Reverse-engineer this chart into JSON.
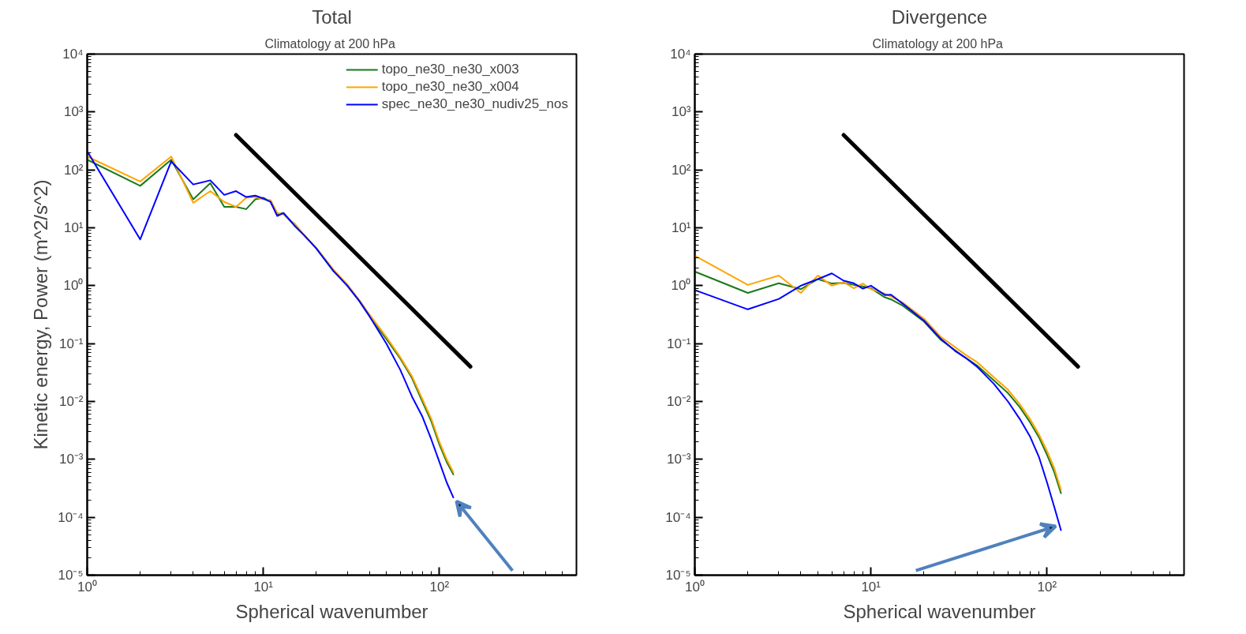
{
  "chart_data": [
    {
      "type": "line",
      "title": "Total",
      "subtitle": "Climatology  at 200 hPa",
      "xlabel": "Spherical wavenumber",
      "ylabel": "Kinetic energy, Power (m^2/s^2)",
      "log": "xy",
      "grid": false,
      "legend": "top right",
      "xlim": [
        1,
        600
      ],
      "ylim": [
        1e-05,
        10000
      ],
      "xticks": [
        {
          "value": 1,
          "label": "10⁰"
        },
        {
          "value": 10,
          "label": "10¹"
        },
        {
          "value": 100,
          "label": "10²"
        }
      ],
      "yticks": [
        {
          "value": 1e-05,
          "label": "10⁻⁵"
        },
        {
          "value": 0.0001,
          "label": "10⁻⁴"
        },
        {
          "value": 0.001,
          "label": "10⁻³"
        },
        {
          "value": 0.01,
          "label": "10⁻²"
        },
        {
          "value": 0.1,
          "label": "10⁻¹"
        },
        {
          "value": 1,
          "label": "10⁰"
        },
        {
          "value": 10,
          "label": "10¹"
        },
        {
          "value": 100,
          "label": "10²"
        },
        {
          "value": 1000,
          "label": "10³"
        },
        {
          "value": 10000,
          "label": "10⁴"
        }
      ],
      "series": [
        {
          "name": "topo_ne30_ne30_x003",
          "color": "#1a7a1a",
          "x": [
            1,
            2,
            3,
            4,
            5,
            6,
            7,
            8,
            9,
            10,
            11,
            12,
            13,
            14,
            15,
            17,
            20,
            25,
            30,
            35,
            40,
            50,
            60,
            70,
            80,
            90,
            100,
            110,
            120
          ],
          "values": [
            150,
            53,
            150,
            31,
            59,
            23,
            23,
            21,
            31,
            33,
            28,
            17,
            18,
            14,
            11,
            7.5,
            4.4,
            1.8,
            1.0,
            0.55,
            0.3,
            0.12,
            0.055,
            0.025,
            0.01,
            0.0045,
            0.0018,
            0.0009,
            0.00055
          ]
        },
        {
          "name": "topo_ne30_ne30_x004",
          "color": "#ffa500",
          "x": [
            1,
            2,
            3,
            4,
            5,
            6,
            7,
            8,
            9,
            10,
            11,
            12,
            13,
            14,
            15,
            17,
            20,
            25,
            30,
            35,
            40,
            50,
            60,
            70,
            80,
            90,
            100,
            110,
            120
          ],
          "values": [
            170,
            63,
            170,
            27,
            43,
            28,
            23,
            33,
            34,
            31,
            30,
            18,
            17,
            14,
            12,
            7.6,
            4.5,
            1.9,
            1.05,
            0.57,
            0.32,
            0.13,
            0.058,
            0.027,
            0.011,
            0.005,
            0.002,
            0.001,
            0.0006
          ]
        },
        {
          "name": "spec_ne30_ne30_nudiv25_nos",
          "color": "#0000ff",
          "x": [
            1,
            2,
            3,
            4,
            5,
            6,
            7,
            8,
            9,
            10,
            11,
            12,
            13,
            14,
            15,
            17,
            20,
            25,
            30,
            35,
            40,
            50,
            60,
            70,
            80,
            90,
            100,
            110,
            120
          ],
          "values": [
            210,
            6.3,
            140,
            56,
            66,
            37,
            43,
            34,
            36,
            32,
            28,
            16,
            18,
            14,
            11,
            7.5,
            4.4,
            1.8,
            1.0,
            0.55,
            0.3,
            0.1,
            0.035,
            0.012,
            0.0055,
            0.0022,
            0.0009,
            0.0004,
            0.00022
          ]
        },
        {
          "color": "#000000",
          "x": [
            7,
            150
          ],
          "values": [
            400,
            0.04
          ]
        }
      ]
    },
    {
      "type": "line",
      "title": "Divergence",
      "subtitle": "Climatology  at 200 hPa",
      "xlabel": "Spherical wavenumber",
      "log": "xy",
      "grid": false,
      "xlim": [
        1,
        600
      ],
      "ylim": [
        1e-05,
        10000
      ],
      "xticks": [
        {
          "value": 1,
          "label": "10⁰"
        },
        {
          "value": 10,
          "label": "10¹"
        },
        {
          "value": 100,
          "label": "10²"
        }
      ],
      "yticks": [
        {
          "value": 1e-05,
          "label": "10⁻⁵"
        },
        {
          "value": 0.0001,
          "label": "10⁻⁴"
        },
        {
          "value": 0.001,
          "label": "10⁻³"
        },
        {
          "value": 0.01,
          "label": "10⁻²"
        },
        {
          "value": 0.1,
          "label": "10⁻¹"
        },
        {
          "value": 1,
          "label": "10⁰"
        },
        {
          "value": 10,
          "label": "10¹"
        },
        {
          "value": 100,
          "label": "10²"
        },
        {
          "value": 1000,
          "label": "10³"
        },
        {
          "value": 10000,
          "label": "10⁴"
        }
      ],
      "series": [
        {
          "color": "#1a7a1a",
          "x": [
            1,
            2,
            3,
            4,
            5,
            6,
            7,
            8,
            9,
            10,
            12,
            13,
            15,
            20,
            25,
            30,
            35,
            40,
            50,
            60,
            70,
            80,
            90,
            100,
            110,
            120
          ],
          "values": [
            1.75,
            0.75,
            1.1,
            0.87,
            1.3,
            1.09,
            1.12,
            1.03,
            0.97,
            0.9,
            0.63,
            0.58,
            0.46,
            0.24,
            0.115,
            0.077,
            0.055,
            0.042,
            0.023,
            0.014,
            0.008,
            0.0044,
            0.0024,
            0.0012,
            0.0006,
            0.00026
          ]
        },
        {
          "color": "#ffa500",
          "x": [
            1,
            2,
            3,
            4,
            5,
            6,
            7,
            8,
            9,
            10,
            12,
            13,
            15,
            20,
            25,
            30,
            35,
            40,
            50,
            60,
            70,
            80,
            90,
            100,
            110,
            120
          ],
          "values": [
            3.3,
            1.03,
            1.5,
            0.75,
            1.5,
            1.0,
            1.15,
            0.9,
            1.09,
            0.87,
            0.73,
            0.65,
            0.52,
            0.27,
            0.13,
            0.087,
            0.062,
            0.048,
            0.026,
            0.016,
            0.009,
            0.005,
            0.0027,
            0.0014,
            0.0007,
            0.0003
          ]
        },
        {
          "color": "#0000ff",
          "x": [
            1,
            2,
            3,
            4,
            5,
            6,
            7,
            8,
            9,
            10,
            12,
            13,
            15,
            20,
            25,
            30,
            35,
            40,
            50,
            60,
            70,
            80,
            90,
            100,
            110,
            120
          ],
          "values": [
            0.84,
            0.39,
            0.59,
            1.0,
            1.3,
            1.63,
            1.22,
            1.1,
            0.89,
            1.0,
            0.69,
            0.7,
            0.5,
            0.25,
            0.12,
            0.075,
            0.055,
            0.04,
            0.02,
            0.01,
            0.005,
            0.0025,
            0.0011,
            0.0004,
            0.00015,
            6e-05
          ]
        },
        {
          "color": "#000000",
          "x": [
            7,
            150
          ],
          "values": [
            400,
            0.04
          ]
        }
      ]
    }
  ]
}
